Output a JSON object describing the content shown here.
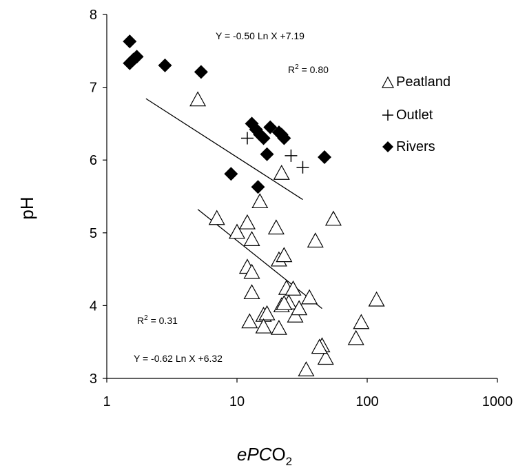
{
  "chart_data": {
    "type": "scatter",
    "xscale": "log",
    "xlim": [
      1,
      1000
    ],
    "ylim": [
      3,
      8
    ],
    "xticks": [
      1,
      10,
      100,
      1000
    ],
    "yticks": [
      3,
      4,
      5,
      6,
      7,
      8
    ],
    "xtick_labels": [
      "1",
      "10",
      "100",
      "1000"
    ],
    "ytick_labels": [
      "3",
      "4",
      "5",
      "6",
      "7",
      "8"
    ],
    "xlabel_main": "ePC",
    "xlabel_o": "O",
    "xlabel_sub": "2",
    "ylabel": "pH",
    "grid": false,
    "legend_position": "top-right",
    "series": [
      {
        "name": "Peatland",
        "marker": "triangle-open",
        "points": [
          [
            5.0,
            6.82
          ],
          [
            7.0,
            5.19
          ],
          [
            10.0,
            5.0
          ],
          [
            12.0,
            5.13
          ],
          [
            13.0,
            4.9
          ],
          [
            15.0,
            5.42
          ],
          [
            12.0,
            4.52
          ],
          [
            13.0,
            4.45
          ],
          [
            13.0,
            4.17
          ],
          [
            12.5,
            3.77
          ],
          [
            16.0,
            3.86
          ],
          [
            17.0,
            3.88
          ],
          [
            16.0,
            3.7
          ],
          [
            20.0,
            5.06
          ],
          [
            21.0,
            4.62
          ],
          [
            23.0,
            4.68
          ],
          [
            22.0,
            3.99
          ],
          [
            24.0,
            4.23
          ],
          [
            25.0,
            4.03
          ],
          [
            27.0,
            4.22
          ],
          [
            28.0,
            3.85
          ],
          [
            30.0,
            3.95
          ],
          [
            21.0,
            3.68
          ],
          [
            23.0,
            4.02
          ],
          [
            22.0,
            5.81
          ],
          [
            36.0,
            4.1
          ],
          [
            40.0,
            4.88
          ],
          [
            55.0,
            5.18
          ],
          [
            45.0,
            3.44
          ],
          [
            48.0,
            3.27
          ],
          [
            34.0,
            3.11
          ],
          [
            82.0,
            3.54
          ],
          [
            90.0,
            3.76
          ],
          [
            118.0,
            4.07
          ],
          [
            43.0,
            3.42
          ]
        ]
      },
      {
        "name": "Outlet",
        "marker": "plus",
        "points": [
          [
            12.0,
            6.3
          ],
          [
            26.0,
            6.06
          ],
          [
            32.0,
            5.9
          ]
        ]
      },
      {
        "name": "Rivers",
        "marker": "diamond-filled",
        "points": [
          [
            1.5,
            7.63
          ],
          [
            1.5,
            7.33
          ],
          [
            1.6,
            7.38
          ],
          [
            1.7,
            7.42
          ],
          [
            2.8,
            7.3
          ],
          [
            5.3,
            7.21
          ],
          [
            13.0,
            6.5
          ],
          [
            14.0,
            6.42
          ],
          [
            15.0,
            6.35
          ],
          [
            16.0,
            6.3
          ],
          [
            18.0,
            6.45
          ],
          [
            17.0,
            6.08
          ],
          [
            21.0,
            6.38
          ],
          [
            22.0,
            6.35
          ],
          [
            23.0,
            6.3
          ],
          [
            47.0,
            6.04
          ],
          [
            9.0,
            5.81
          ],
          [
            14.5,
            5.63
          ]
        ]
      }
    ],
    "trendlines": [
      {
        "slope": -0.5,
        "intercept": 7.19,
        "xrange": [
          2,
          32
        ]
      },
      {
        "slope": -0.62,
        "intercept": 6.32,
        "xrange": [
          5,
          45
        ]
      }
    ],
    "annotations": {
      "eq_upper": "Y = -0.50 Ln X +7.19",
      "r2_upper_prefix": "R",
      "r2_upper_sup": "2",
      "r2_upper_value": " = 0.80",
      "r2_lower_prefix": "R",
      "r2_lower_sup": "2",
      "r2_lower_value": " = 0.31",
      "eq_lower": "Y = -0.62 Ln X +6.32"
    }
  }
}
